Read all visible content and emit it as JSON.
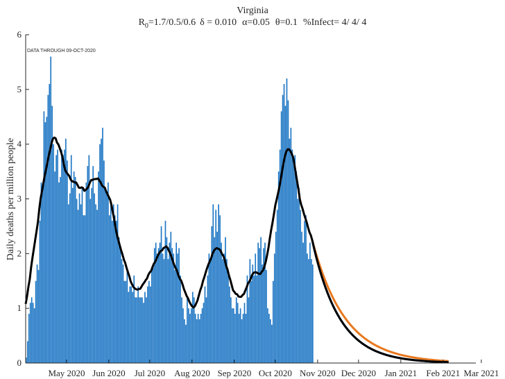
{
  "chart_data": {
    "type": "bar",
    "title": "Virginia",
    "subtitle": {
      "r0_prefix": "R",
      "r0_sub": "0",
      "r0_values": "=1.7/0.5/0.6",
      "delta": "δ = 0.010",
      "alpha": "α=0.05",
      "theta": "θ=0.1",
      "infect": "%Infect= 4/ 4/ 4"
    },
    "annotation": "DATA THROUGH 09-OCT-2020",
    "ylabel": "Daily deaths per million people",
    "xlabel": "",
    "ylim": [
      0,
      6
    ],
    "yticks": [
      0,
      1,
      2,
      3,
      4,
      5,
      6
    ],
    "x_start_day": 0,
    "x_end_day": 330,
    "x_ticks": [
      {
        "label": "May 2020",
        "day": 30
      },
      {
        "label": "Jun 2020",
        "day": 61
      },
      {
        "label": "Jul 2020",
        "day": 91
      },
      {
        "label": "Aug 2020",
        "day": 122
      },
      {
        "label": "Sep 2020",
        "day": 153
      },
      {
        "label": "Oct 2020",
        "day": 183
      },
      {
        "label": "Nov 2020",
        "day": 214
      },
      {
        "label": "Dec 2020",
        "day": 244
      },
      {
        "label": "Jan 2021",
        "day": 275
      },
      {
        "label": "Feb 2021",
        "day": 306
      },
      {
        "label": "Mar 2021",
        "day": 334
      }
    ],
    "colors": {
      "bars": "#1f77c4",
      "model": "#000000",
      "projection_low": "#1f5fa8",
      "projection_high": "#e8781e",
      "axis": "#262626"
    },
    "bar_values": [
      0.1,
      0.4,
      0.9,
      1.1,
      1.2,
      1.1,
      1.0,
      1.5,
      1.8,
      1.7,
      2.6,
      3.3,
      3.2,
      4.6,
      4.4,
      4.5,
      4.9,
      5.1,
      5.6,
      4.7,
      4.0,
      3.5,
      3.8,
      3.9,
      3.3,
      3.4,
      3.9,
      3.8,
      3.9,
      4.1,
      3.7,
      2.9,
      3.1,
      3.8,
      3.2,
      3.5,
      3.4,
      3.0,
      2.8,
      3.1,
      2.9,
      3.2,
      2.7,
      2.7,
      3.3,
      3.6,
      3.8,
      3.0,
      3.2,
      3.6,
      3.1,
      2.9,
      2.8,
      3.5,
      4.0,
      4.1,
      4.3,
      3.7,
      3.2,
      3.1,
      3.3,
      2.7,
      2.9,
      2.6,
      2.9,
      2.7,
      2.6,
      2.9,
      2.3,
      2.1,
      1.9,
      1.8,
      1.5,
      1.5,
      1.7,
      1.3,
      1.4,
      1.4,
      1.3,
      1.6,
      1.2,
      1.2,
      1.4,
      1.2,
      1.2,
      1.2,
      1.1,
      1.3,
      1.2,
      1.4,
      1.5,
      1.4,
      1.7,
      1.8,
      2.1,
      2.2,
      2.0,
      2.1,
      2.2,
      2.5,
      2.0,
      1.9,
      2.6,
      2.3,
      1.9,
      2.2,
      2.4,
      2.1,
      2.0,
      1.7,
      2.2,
      2.0,
      2.1,
      1.6,
      1.2,
      1.0,
      0.8,
      0.7,
      1.2,
      1.0,
      0.9,
      1.0,
      1.3,
      1.2,
      0.9,
      0.8,
      0.9,
      0.8,
      0.9,
      1.0,
      1.1,
      1.4,
      1.2,
      1.6,
      2.0,
      1.9,
      2.5,
      2.9,
      2.3,
      2.8,
      2.4,
      2.9,
      2.7,
      2.2,
      1.9,
      2.0,
      2.3,
      1.9,
      1.6,
      1.4,
      1.2,
      1.0,
      1.0,
      0.9,
      1.2,
      1.1,
      0.9,
      1.0,
      0.8,
      0.9,
      1.1,
      0.9,
      1.6,
      1.2,
      1.9,
      1.5,
      1.8,
      1.6,
      2.0,
      1.6,
      2.2,
      2.1,
      2.3,
      1.8,
      2.1,
      2.2,
      1.7,
      1.0,
      0.9,
      0.8,
      0.7,
      1.5,
      2.0,
      2.4,
      2.8,
      3.5,
      3.9,
      4.6,
      4.9,
      5.1,
      4.7,
      5.2,
      4.8,
      4.1,
      4.3,
      3.9,
      3.7,
      3.8,
      3.5,
      3.0,
      3.2,
      2.8,
      2.4,
      2.2,
      2.6,
      2.7,
      2.0,
      1.9,
      2.2,
      1.9,
      1.8
    ]
  }
}
